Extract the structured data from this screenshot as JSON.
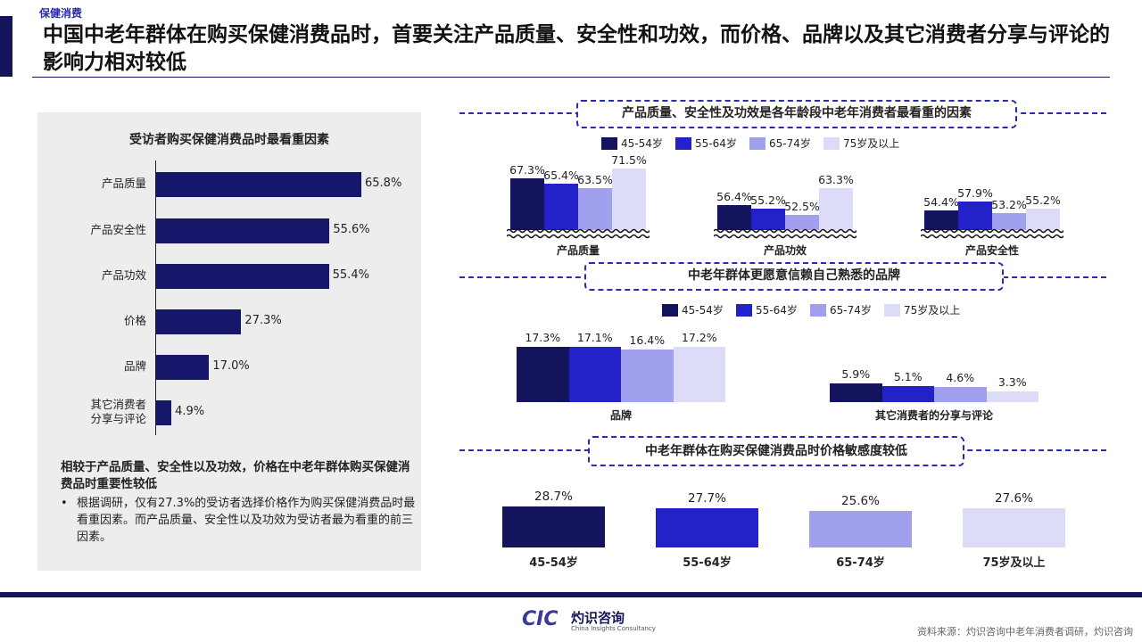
{
  "header": {
    "category": "保健消费",
    "title": "中国中老年群体在购买保健消费品时，首要关注产品质量、安全性和功效，而价格、品牌以及其它消费者分享与评论的影响力相对较低"
  },
  "colors": {
    "c1": "#14145e",
    "c2": "#2222c8",
    "c3": "#a0a0ee",
    "c4": "#dcdcf8",
    "navy": "#14145a"
  },
  "legend": [
    "45-54岁",
    "55-64岁",
    "65-74岁",
    "75岁及以上"
  ],
  "left": {
    "chart_title": "受访者购买保健消费品时最看重因素",
    "summary_head": "相较于产品质量、安全性以及功效，价格在中老年群体购买保健消费品时重要性较低",
    "bullet": "•",
    "summary_text": "根据调研，仅有27.3%的受访者选择价格作为购买保健消费品时最看重因素。而产品质量、安全性以及功效为受访者最为看重的前三因素。"
  },
  "sections": {
    "s1": "产品质量、安全性及功效是各年龄段中老年消费者最看重的因素",
    "s2": "中老年群体更愿意信赖自己熟悉的品牌",
    "s3": "中老年群体在购买保健消费品时价格敏感度较低"
  },
  "chart_data": [
    {
      "type": "bar",
      "orientation": "horizontal",
      "title": "受访者购买保健消费品时最看重因素",
      "categories": [
        "产品质量",
        "产品安全性",
        "产品功效",
        "价格",
        "品牌",
        "其它消费者分享与评论"
      ],
      "values": [
        65.8,
        55.6,
        55.4,
        27.3,
        17.0,
        4.9
      ],
      "labels": [
        "65.8%",
        "55.6%",
        "55.4%",
        "27.3%",
        "17.0%",
        "4.9%"
      ],
      "category_lines": [
        [
          "产品质量"
        ],
        [
          "产品安全性"
        ],
        [
          "产品功效"
        ],
        [
          "价格"
        ],
        [
          "品牌"
        ],
        [
          "其它消费者",
          "分享与评论"
        ]
      ]
    },
    {
      "type": "bar",
      "title": "产品质量、安全性及功效是各年龄段中老年消费者最看重的因素",
      "categories": [
        "产品质量",
        "产品功效",
        "产品安全性"
      ],
      "series": [
        {
          "name": "45-54岁",
          "values": [
            67.3,
            56.4,
            54.4
          ],
          "labels": [
            "67.3%",
            "56.4%",
            "54.4%"
          ]
        },
        {
          "name": "55-64岁",
          "values": [
            65.4,
            55.2,
            57.9
          ],
          "labels": [
            "65.4%",
            "55.2%",
            "57.9%"
          ]
        },
        {
          "name": "65-74岁",
          "values": [
            63.5,
            52.5,
            53.2
          ],
          "labels": [
            "63.5%",
            "52.5%",
            "53.2%"
          ]
        },
        {
          "name": "75岁及以上",
          "values": [
            71.5,
            63.3,
            55.2
          ],
          "labels": [
            "71.5%",
            "63.3%",
            "55.2%"
          ]
        }
      ],
      "axis_break": true
    },
    {
      "type": "bar",
      "title": "中老年群体更愿意信赖自己熟悉的品牌",
      "categories": [
        "品牌",
        "其它消费者的分享与评论"
      ],
      "series": [
        {
          "name": "45-54岁",
          "values": [
            17.3,
            5.9
          ],
          "labels": [
            "17.3%",
            "5.9%"
          ]
        },
        {
          "name": "55-64岁",
          "values": [
            17.1,
            5.1
          ],
          "labels": [
            "17.1%",
            "5.1%"
          ]
        },
        {
          "name": "65-74岁",
          "values": [
            16.4,
            4.6
          ],
          "labels": [
            "16.4%",
            "4.6%"
          ]
        },
        {
          "name": "75岁及以上",
          "values": [
            17.2,
            3.3
          ],
          "labels": [
            "17.2%",
            "3.3%"
          ]
        }
      ]
    },
    {
      "type": "bar",
      "title": "中老年群体在购买保健消费品时价格敏感度较低",
      "categories": [
        "45-54岁",
        "55-64岁",
        "65-74岁",
        "75岁及以上"
      ],
      "values": [
        28.7,
        27.7,
        25.6,
        27.6
      ],
      "labels": [
        "28.7%",
        "27.7%",
        "25.6%",
        "27.6%"
      ]
    }
  ],
  "footer": {
    "logo_mark": "CIC",
    "logo_name": "灼识咨询",
    "logo_sub": "China Insights Consultancy",
    "source": "资料来源：灼识咨询中老年消费者调研，灼识咨询"
  }
}
